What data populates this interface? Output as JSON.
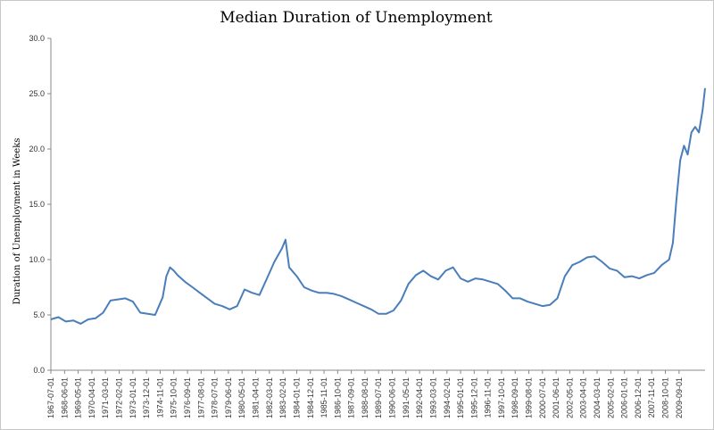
{
  "chart_data": {
    "type": "line",
    "title": "Median Duration of Unemployment",
    "xlabel": "",
    "ylabel": "Duration of Unemployment in Weeks",
    "ylim": [
      0,
      30
    ],
    "y_ticks": [
      "0.0",
      "5.0",
      "10.0",
      "15.0",
      "20.0",
      "25.0",
      "30.0"
    ],
    "x_range": [
      "1967-07-01",
      "2011-06-01"
    ],
    "x_ticks": [
      "1967-07-01",
      "1968-06-01",
      "1969-05-01",
      "1970-04-01",
      "1971-03-01",
      "1972-02-01",
      "1973-01-01",
      "1973-12-01",
      "1974-11-01",
      "1975-10-01",
      "1976-09-01",
      "1977-08-01",
      "1978-07-01",
      "1979-06-01",
      "1980-05-01",
      "1981-04-01",
      "1982-03-01",
      "1983-02-01",
      "1984-01-01",
      "1984-12-01",
      "1985-11-01",
      "1986-10-01",
      "1987-09-01",
      "1988-08-01",
      "1989-07-01",
      "1990-06-01",
      "1991-05-01",
      "1992-04-01",
      "1993-03-01",
      "1994-02-01",
      "1995-01-01",
      "1995-12-01",
      "1996-11-01",
      "1997-10-01",
      "1998-09-01",
      "1999-08-01",
      "2000-07-01",
      "2001-06-01",
      "2002-05-01",
      "2003-04-01",
      "2004-03-01",
      "2005-02-01",
      "2006-01-01",
      "2006-12-01",
      "2007-11-01",
      "2008-10-01",
      "2009-09-01"
    ],
    "grid": false,
    "legend": "none",
    "series_color": "#4a7ebb",
    "x": [
      "1967-07-01",
      "1968-01-01",
      "1968-07-01",
      "1969-01-01",
      "1969-07-01",
      "1970-01-01",
      "1970-07-01",
      "1971-01-01",
      "1971-07-01",
      "1972-01-01",
      "1972-07-01",
      "1973-01-01",
      "1973-07-01",
      "1974-01-01",
      "1974-07-01",
      "1975-01-01",
      "1975-04-01",
      "1975-07-01",
      "1975-10-01",
      "1976-01-01",
      "1976-07-01",
      "1977-01-01",
      "1977-07-01",
      "1978-01-01",
      "1978-07-01",
      "1979-01-01",
      "1979-07-01",
      "1980-01-01",
      "1980-07-01",
      "1981-01-01",
      "1981-07-01",
      "1982-01-01",
      "1982-07-01",
      "1983-01-01",
      "1983-04-01",
      "1983-07-01",
      "1984-01-01",
      "1984-07-01",
      "1985-01-01",
      "1985-07-01",
      "1986-01-01",
      "1986-07-01",
      "1987-01-01",
      "1987-07-01",
      "1988-01-01",
      "1988-07-01",
      "1989-01-01",
      "1989-07-01",
      "1990-01-01",
      "1990-07-01",
      "1991-01-01",
      "1991-07-01",
      "1992-01-01",
      "1992-07-01",
      "1993-01-01",
      "1993-07-01",
      "1994-01-01",
      "1994-07-01",
      "1995-01-01",
      "1995-07-01",
      "1996-01-01",
      "1996-07-01",
      "1997-01-01",
      "1997-07-01",
      "1998-01-01",
      "1998-07-01",
      "1999-01-01",
      "1999-07-01",
      "2000-01-01",
      "2000-07-01",
      "2001-01-01",
      "2001-07-01",
      "2002-01-01",
      "2002-07-01",
      "2003-01-01",
      "2003-07-01",
      "2004-01-01",
      "2004-07-01",
      "2005-01-01",
      "2005-07-01",
      "2006-01-01",
      "2006-07-01",
      "2007-01-01",
      "2007-07-01",
      "2008-01-01",
      "2008-07-01",
      "2009-01-01",
      "2009-04-01",
      "2009-07-01",
      "2009-10-01",
      "2010-01-01",
      "2010-04-01",
      "2010-07-01",
      "2010-10-01",
      "2011-01-01",
      "2011-04-01",
      "2011-06-01"
    ],
    "values": [
      4.6,
      4.8,
      4.4,
      4.5,
      4.2,
      4.6,
      4.7,
      5.2,
      6.3,
      6.4,
      6.5,
      6.2,
      5.2,
      5.1,
      5.0,
      6.6,
      8.5,
      9.3,
      9.0,
      8.6,
      8.0,
      7.5,
      7.0,
      6.5,
      6.0,
      5.8,
      5.5,
      5.8,
      7.3,
      7.0,
      6.8,
      8.3,
      9.8,
      11.0,
      11.8,
      9.3,
      8.5,
      7.5,
      7.2,
      7.0,
      7.0,
      6.9,
      6.7,
      6.4,
      6.1,
      5.8,
      5.5,
      5.1,
      5.1,
      5.4,
      6.3,
      7.8,
      8.6,
      9.0,
      8.5,
      8.2,
      9.0,
      9.3,
      8.3,
      8.0,
      8.3,
      8.2,
      8.0,
      7.8,
      7.2,
      6.5,
      6.5,
      6.2,
      6.0,
      5.8,
      5.9,
      6.5,
      8.5,
      9.5,
      9.8,
      10.2,
      10.3,
      9.8,
      9.2,
      9.0,
      8.4,
      8.5,
      8.3,
      8.6,
      8.8,
      9.5,
      10.0,
      11.5,
      15.5,
      19.0,
      20.3,
      19.5,
      21.5,
      22.0,
      21.5,
      23.5,
      25.5
    ]
  }
}
